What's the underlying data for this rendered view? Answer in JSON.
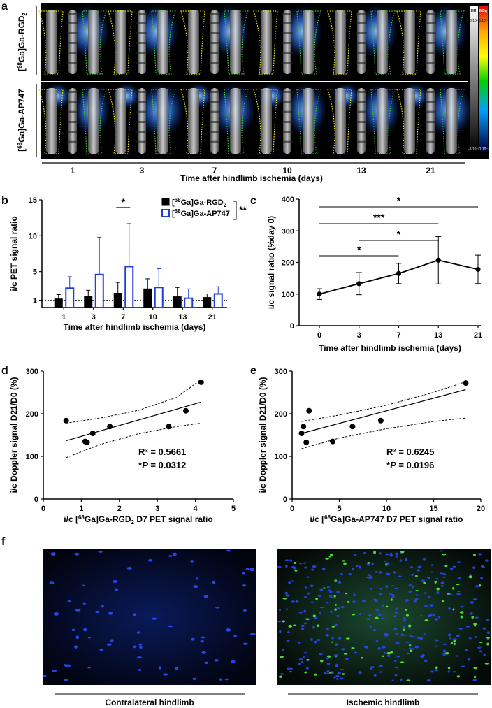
{
  "panel_labels": {
    "a": "a",
    "b": "b",
    "c": "c",
    "d": "d",
    "e": "e",
    "f": "f"
  },
  "panel_a": {
    "row_labels": [
      "[68Ga]Ga-RGD2",
      "[68Ga]Ga-AP747"
    ],
    "days": [
      "1",
      "3",
      "7",
      "10",
      "13",
      "21"
    ],
    "xlabel": "Time after hindlimb ischemia (days)",
    "colorbar": {
      "hu_label": "HU",
      "mbq_label": "MBq",
      "top_left": "3.10³",
      "top_right": "5.10⁻³",
      "bottom": "-3.10⁻³1.10⁻⁴"
    }
  },
  "panel_f": {
    "left_label": "Contralateral hindlimb",
    "right_label": "Ischemic hindlimb"
  },
  "chart_data": [
    {
      "panel": "b",
      "type": "bar",
      "categories": [
        "1",
        "3",
        "7",
        "10",
        "13",
        "21"
      ],
      "xlabel": "Time after hindlimb ischemia (days)",
      "ylabel": "i/c PET signal ratio",
      "ylim": [
        0,
        15
      ],
      "yticks": [
        "1",
        "5",
        "10",
        "15"
      ],
      "legend_position": "top-right",
      "series": [
        {
          "name": "[68Ga]Ga-RGD2",
          "color": "#000000",
          "values": [
            1.2,
            1.6,
            2.0,
            2.6,
            1.5,
            1.4
          ],
          "errors": [
            0.6,
            0.8,
            1.5,
            1.4,
            1.3,
            0.5
          ]
        },
        {
          "name": "[68Ga]Ga-AP747",
          "color": "#1f3fd8",
          "values": [
            2.7,
            4.6,
            5.7,
            2.8,
            1.3,
            1.9
          ],
          "errors": [
            1.6,
            5.2,
            6.0,
            2.6,
            1.3,
            1.0
          ]
        }
      ],
      "reference_line": 1,
      "annotations": [
        {
          "text": "*",
          "between": [
            "7",
            "7"
          ]
        },
        {
          "text": "**",
          "between_series": true
        }
      ]
    },
    {
      "panel": "c",
      "type": "line",
      "x": [
        0,
        3,
        7,
        13,
        21
      ],
      "y": [
        100,
        133,
        165,
        207,
        178
      ],
      "errors": [
        17,
        35,
        32,
        75,
        45
      ],
      "xlabel": "Time after hindlimb ischemia (days)",
      "ylabel": "i/c signal ratio (%day 0)",
      "ylim": [
        0,
        400
      ],
      "yticks": [
        0,
        100,
        200,
        300,
        400
      ],
      "xticks": [
        "0",
        "3",
        "7",
        "13",
        "21"
      ],
      "brackets": [
        {
          "from": 0,
          "to": 21,
          "label": "*"
        },
        {
          "from": 0,
          "to": 13,
          "label": "***"
        },
        {
          "from": 3,
          "to": 13,
          "label": "*"
        },
        {
          "from": 0,
          "to": 7,
          "label": "*"
        }
      ]
    },
    {
      "panel": "d",
      "type": "scatter",
      "points": [
        [
          0.6,
          184
        ],
        [
          1.1,
          135
        ],
        [
          1.15,
          133
        ],
        [
          1.3,
          154
        ],
        [
          1.75,
          170
        ],
        [
          3.3,
          170
        ],
        [
          3.75,
          207
        ],
        [
          4.15,
          274
        ]
      ],
      "fit": {
        "intercept": 121.5,
        "slope": 25.5
      },
      "ci_upper": [
        [
          0.6,
          178
        ],
        [
          1.5,
          190
        ],
        [
          2.5,
          208
        ],
        [
          3.5,
          238
        ],
        [
          4.15,
          280
        ]
      ],
      "ci_lower": [
        [
          0.6,
          97
        ],
        [
          1.5,
          128
        ],
        [
          2.5,
          153
        ],
        [
          3.5,
          170
        ],
        [
          4.15,
          178
        ]
      ],
      "xlabel": "i/c [68Ga]Ga-RGD2 D7 PET signal ratio",
      "ylabel": "i/c Doppler signal D21/D0 (%)",
      "xlim": [
        0,
        5
      ],
      "ylim": [
        0,
        300
      ],
      "xticks": [
        0,
        1,
        2,
        3,
        4,
        5
      ],
      "yticks": [
        0,
        100,
        200,
        300
      ],
      "r2": "R² = 0.5661",
      "p": "*P = 0.0312"
    },
    {
      "panel": "e",
      "type": "scatter",
      "points": [
        [
          1.0,
          154
        ],
        [
          1.2,
          170
        ],
        [
          1.5,
          133
        ],
        [
          1.8,
          207
        ],
        [
          4.3,
          135
        ],
        [
          6.4,
          170
        ],
        [
          9.4,
          184
        ],
        [
          18.4,
          272
        ]
      ],
      "fit": {
        "intercept": 148,
        "slope": 5.9
      },
      "ci_upper": [
        [
          1.0,
          182
        ],
        [
          5,
          197
        ],
        [
          10,
          220
        ],
        [
          15,
          250
        ],
        [
          18.4,
          275
        ]
      ],
      "ci_lower": [
        [
          1.0,
          118
        ],
        [
          5,
          143
        ],
        [
          10,
          165
        ],
        [
          15,
          182
        ],
        [
          18.4,
          190
        ]
      ],
      "xlabel": "i/c [68Ga]Ga-AP747 D7 PET signal ratio",
      "ylabel": "i/c Doppler signal D21/D0 (%)",
      "xlim": [
        0,
        20
      ],
      "ylim": [
        0,
        300
      ],
      "xticks": [
        0,
        5,
        10,
        15,
        20
      ],
      "yticks": [
        0,
        100,
        200,
        300
      ],
      "r2": "R² = 0.6245",
      "p": "*P = 0.0196"
    }
  ]
}
